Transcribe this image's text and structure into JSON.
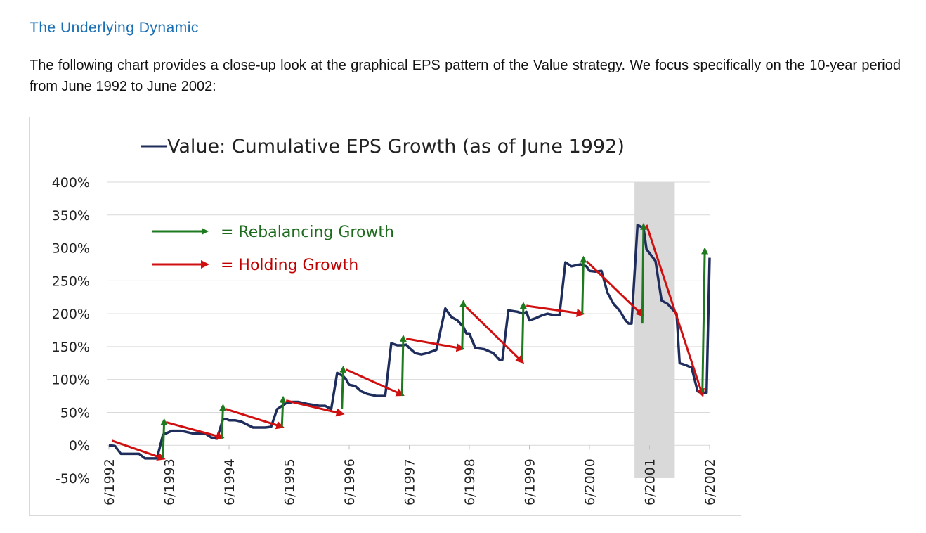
{
  "page": {
    "section_title": "The Underlying Dynamic",
    "intro_text": "The following chart provides a close-up look at the graphical EPS pattern of the Value strategy. We focus specifically on the 10-year period from June 1992 to June 2002:"
  },
  "chart_data": {
    "type": "line",
    "title": "Value: Cumulative EPS Growth (as of June 1992)",
    "legend_series": "Value: Cumulative EPS Growth (as of June 1992)",
    "annotation_legend": [
      {
        "symbol": "green-arrow",
        "label": "= Rebalancing Growth",
        "color": "#1e6b1e"
      },
      {
        "symbol": "red-arrow",
        "label": "= Holding Growth",
        "color": "#c00000"
      }
    ],
    "colors": {
      "series": "#1f2d5c",
      "rebalancing": "#1e7a1e",
      "holding": "#d01010",
      "recession": "#d9d9d9",
      "grid": "#d9d9d9"
    },
    "ylim": [
      -50,
      400
    ],
    "yticks": [
      400,
      350,
      300,
      250,
      200,
      150,
      100,
      50,
      0,
      -50
    ],
    "ytick_labels": [
      "400%",
      "350%",
      "300%",
      "250%",
      "200%",
      "150%",
      "100%",
      "50%",
      "0%",
      "-50%"
    ],
    "xlim": [
      1992.5,
      2002.5
    ],
    "xticks": [
      1992.5,
      1993.5,
      1994.5,
      1995.5,
      1996.5,
      1997.5,
      1998.5,
      1999.5,
      2000.5,
      2001.5,
      2002.5
    ],
    "xtick_labels": [
      "6/1992",
      "6/1993",
      "6/1994",
      "6/1995",
      "6/1996",
      "6/1997",
      "6/1998",
      "6/1999",
      "6/2000",
      "6/2001",
      "6/2002"
    ],
    "recession_shade": [
      2001.25,
      2001.92
    ],
    "series": [
      {
        "name": "Value: Cumulative EPS Growth (as of June 1992)",
        "x": [
          1992.5,
          1992.6,
          1992.7,
          1992.8,
          1992.9,
          1993.0,
          1993.1,
          1993.2,
          1993.3,
          1993.4,
          1993.45,
          1993.5,
          1993.55,
          1993.7,
          1993.9,
          1994.1,
          1994.2,
          1994.3,
          1994.4,
          1994.45,
          1994.5,
          1994.6,
          1994.7,
          1994.9,
          1995.1,
          1995.2,
          1995.3,
          1995.4,
          1995.45,
          1995.5,
          1995.55,
          1995.65,
          1995.8,
          1996.0,
          1996.1,
          1996.2,
          1996.3,
          1996.4,
          1996.45,
          1996.5,
          1996.6,
          1996.7,
          1996.8,
          1996.95,
          1997.1,
          1997.2,
          1997.3,
          1997.4,
          1997.45,
          1997.5,
          1997.6,
          1997.7,
          1997.8,
          1997.95,
          1998.1,
          1998.2,
          1998.3,
          1998.4,
          1998.45,
          1998.5,
          1998.6,
          1998.75,
          1998.9,
          1999.0,
          1999.05,
          1999.15,
          1999.3,
          1999.4,
          1999.45,
          1999.5,
          1999.6,
          1999.7,
          1999.8,
          1999.9,
          2000.0,
          2000.1,
          2000.2,
          2000.35,
          2000.45,
          2000.5,
          2000.6,
          2000.7,
          2000.8,
          2000.9,
          2001.0,
          2001.1,
          2001.15,
          2001.2,
          2001.3,
          2001.4,
          2001.45,
          2001.5,
          2001.6,
          2001.7,
          2001.8,
          2001.95,
          2002.0,
          2002.1,
          2002.2,
          2002.3,
          2002.35,
          2002.45,
          2002.5
        ],
        "y": [
          0,
          -1,
          -13,
          -13,
          -13,
          -13,
          -20,
          -20,
          -20,
          16,
          18,
          20,
          22,
          22,
          18,
          18,
          12,
          10,
          40,
          40,
          38,
          38,
          36,
          27,
          27,
          28,
          55,
          61,
          64,
          64,
          66,
          66,
          63,
          60,
          60,
          55,
          110,
          105,
          100,
          92,
          90,
          82,
          78,
          75,
          75,
          155,
          152,
          152,
          153,
          148,
          140,
          138,
          140,
          145,
          208,
          195,
          190,
          180,
          170,
          170,
          148,
          146,
          140,
          130,
          130,
          205,
          203,
          200,
          203,
          190,
          193,
          197,
          200,
          198,
          198,
          278,
          272,
          275,
          272,
          265,
          264,
          265,
          232,
          215,
          205,
          190,
          185,
          185,
          335,
          330,
          298,
          292,
          280,
          220,
          215,
          200,
          125,
          122,
          118,
          82,
          80,
          80,
          285
        ]
      }
    ],
    "rebalancing_arrows": [
      {
        "from": [
          1993.4,
          -20
        ],
        "to": [
          1993.42,
          38
        ]
      },
      {
        "from": [
          1994.38,
          10
        ],
        "to": [
          1994.4,
          60
        ]
      },
      {
        "from": [
          1995.38,
          28
        ],
        "to": [
          1995.4,
          72
        ]
      },
      {
        "from": [
          1996.38,
          55
        ],
        "to": [
          1996.4,
          118
        ]
      },
      {
        "from": [
          1997.38,
          75
        ],
        "to": [
          1997.4,
          165
        ]
      },
      {
        "from": [
          1998.38,
          145
        ],
        "to": [
          1998.4,
          218
        ]
      },
      {
        "from": [
          1999.38,
          130
        ],
        "to": [
          1999.4,
          215
        ]
      },
      {
        "from": [
          2000.38,
          200
        ],
        "to": [
          2000.4,
          285
        ]
      },
      {
        "from": [
          2001.38,
          185
        ],
        "to": [
          2001.4,
          335
        ]
      },
      {
        "from": [
          2002.38,
          80
        ],
        "to": [
          2002.42,
          298
        ]
      }
    ],
    "holding_arrows": [
      {
        "from": [
          1992.55,
          7
        ],
        "to": [
          1993.4,
          -20
        ]
      },
      {
        "from": [
          1993.45,
          35
        ],
        "to": [
          1994.38,
          12
        ]
      },
      {
        "from": [
          1994.45,
          55
        ],
        "to": [
          1995.38,
          28
        ]
      },
      {
        "from": [
          1995.45,
          68
        ],
        "to": [
          1996.38,
          48
        ]
      },
      {
        "from": [
          1996.45,
          115
        ],
        "to": [
          1997.38,
          77
        ]
      },
      {
        "from": [
          1997.45,
          162
        ],
        "to": [
          1998.38,
          147
        ]
      },
      {
        "from": [
          1998.45,
          210
        ],
        "to": [
          1999.38,
          127
        ]
      },
      {
        "from": [
          1999.45,
          212
        ],
        "to": [
          2000.38,
          200
        ]
      },
      {
        "from": [
          2000.45,
          280
        ],
        "to": [
          2001.38,
          198
        ]
      },
      {
        "from": [
          2001.45,
          335
        ],
        "to": [
          2002.38,
          77
        ]
      }
    ]
  }
}
